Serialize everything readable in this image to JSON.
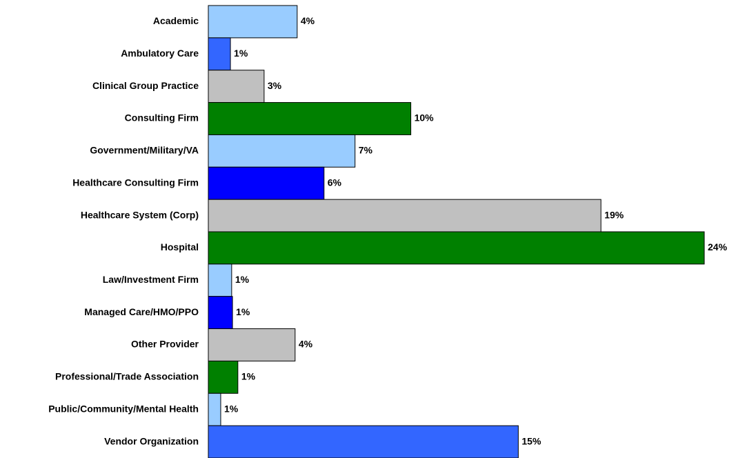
{
  "chart_data": {
    "type": "barh",
    "categories": [
      "Academic",
      "Ambulatory Care",
      "Clinical Group Practice",
      "Consulting Firm",
      "Government/Military/VA",
      "Healthcare Consulting Firm",
      "Healthcare System (Corp)",
      "Hospital",
      "Law/Investment Firm",
      "Managed Care/HMO/PPO",
      "Other Provider",
      "Professional/Trade Association",
      "Public/Community/Mental Health",
      "Vendor Organization"
    ],
    "values": [
      4.3,
      1.07,
      2.7,
      9.8,
      7.1,
      5.6,
      19,
      24,
      1.13,
      1.17,
      4.2,
      1.43,
      0.6,
      15
    ],
    "value_labels": [
      "4%",
      "1%",
      "3%",
      "10%",
      "7%",
      "6%",
      "19%",
      "24%",
      "1%",
      "1%",
      "4%",
      "1%",
      "1%",
      "15%"
    ],
    "colors": [
      "#99ccff",
      "#3366ff",
      "#c0c0c0",
      "#008000",
      "#99ccff",
      "#0000ff",
      "#c0c0c0",
      "#008000",
      "#99ccff",
      "#0000ff",
      "#c0c0c0",
      "#008000",
      "#99ccff",
      "#3366ff"
    ],
    "xlim": [
      0,
      24
    ]
  }
}
